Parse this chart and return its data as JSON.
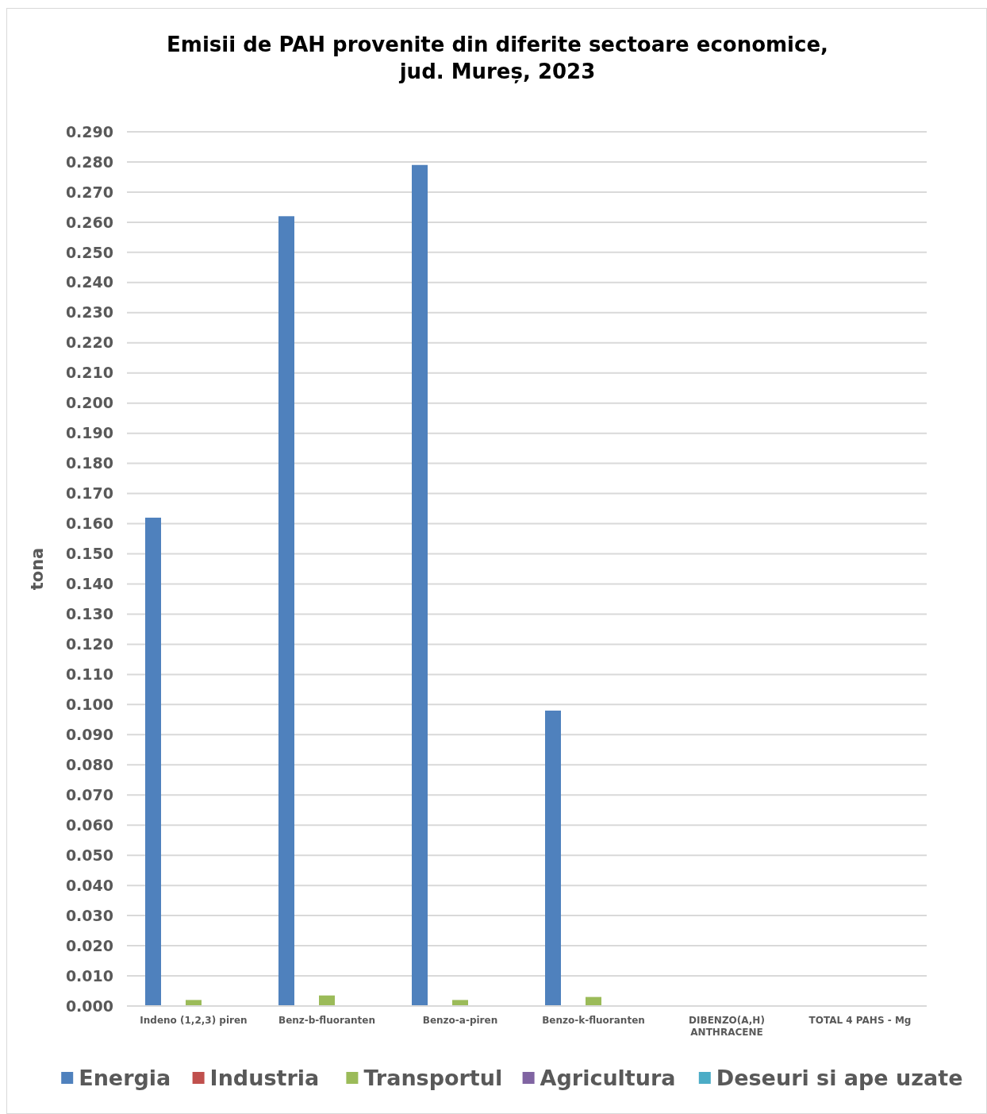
{
  "chart_data": {
    "type": "bar",
    "title": "Emisii de PAH provenite din diferite sectoare economice, jud. Mureș, 2023",
    "ylabel": "tona",
    "categories": [
      "Indeno (1,2,3) piren",
      "Benz-b-fluoranten",
      "Benzo-a-piren",
      "Benzo-k-fluoranten",
      "DIBENZO(A,H) ANTHRACENE",
      "TOTAL 4 PAHS - Mg"
    ],
    "series": [
      {
        "name": "Energia",
        "color": "#4f81bd",
        "values": [
          0.162,
          0.262,
          0.279,
          0.098,
          0,
          0
        ]
      },
      {
        "name": "Industria",
        "color": "#c0504d",
        "values": [
          0,
          0,
          0,
          0,
          0,
          0
        ]
      },
      {
        "name": "Transportul",
        "color": "#9bbb59",
        "values": [
          0.002,
          0.0035,
          0.002,
          0.003,
          0,
          0
        ]
      },
      {
        "name": "Agricultura",
        "color": "#8064a2",
        "values": [
          0,
          0,
          0,
          0,
          0,
          0
        ]
      },
      {
        "name": "Deseuri si ape uzate",
        "color": "#4bacc6",
        "values": [
          0,
          0,
          0,
          0,
          0,
          0
        ]
      }
    ],
    "ylim": [
      0,
      0.29
    ],
    "yticks": [
      {
        "value": 0,
        "label": "0.000"
      },
      {
        "value": 0.01,
        "label": "0.010"
      },
      {
        "value": 0.02,
        "label": "0.020"
      },
      {
        "value": 0.03,
        "label": "0.030"
      },
      {
        "value": 0.04,
        "label": "0.040"
      },
      {
        "value": 0.05,
        "label": "0.050"
      },
      {
        "value": 0.06,
        "label": "0.060"
      },
      {
        "value": 0.07,
        "label": "0.070"
      },
      {
        "value": 0.08,
        "label": "0.080"
      },
      {
        "value": 0.09,
        "label": "0.090"
      },
      {
        "value": 0.1,
        "label": "0.100"
      },
      {
        "value": 0.11,
        "label": "0.110"
      },
      {
        "value": 0.12,
        "label": "0.120"
      },
      {
        "value": 0.13,
        "label": "0.130"
      },
      {
        "value": 0.14,
        "label": "0.140"
      },
      {
        "value": 0.15,
        "label": "0.150"
      },
      {
        "value": 0.16,
        "label": "0.160"
      },
      {
        "value": 0.17,
        "label": "0.170"
      },
      {
        "value": 0.18,
        "label": "0.180"
      },
      {
        "value": 0.19,
        "label": "0.190"
      },
      {
        "value": 0.2,
        "label": "0.200"
      },
      {
        "value": 0.21,
        "label": "0.210"
      },
      {
        "value": 0.22,
        "label": "0.220"
      },
      {
        "value": 0.23,
        "label": "0.230"
      },
      {
        "value": 0.24,
        "label": "0.240"
      },
      {
        "value": 0.25,
        "label": "0.250"
      },
      {
        "value": 0.26,
        "label": "0.260"
      },
      {
        "value": 0.27,
        "label": "0.270"
      },
      {
        "value": 0.28,
        "label": "0.280"
      },
      {
        "value": 0.29,
        "label": "0.290"
      }
    ],
    "grid": "y",
    "legend": "bottom"
  }
}
